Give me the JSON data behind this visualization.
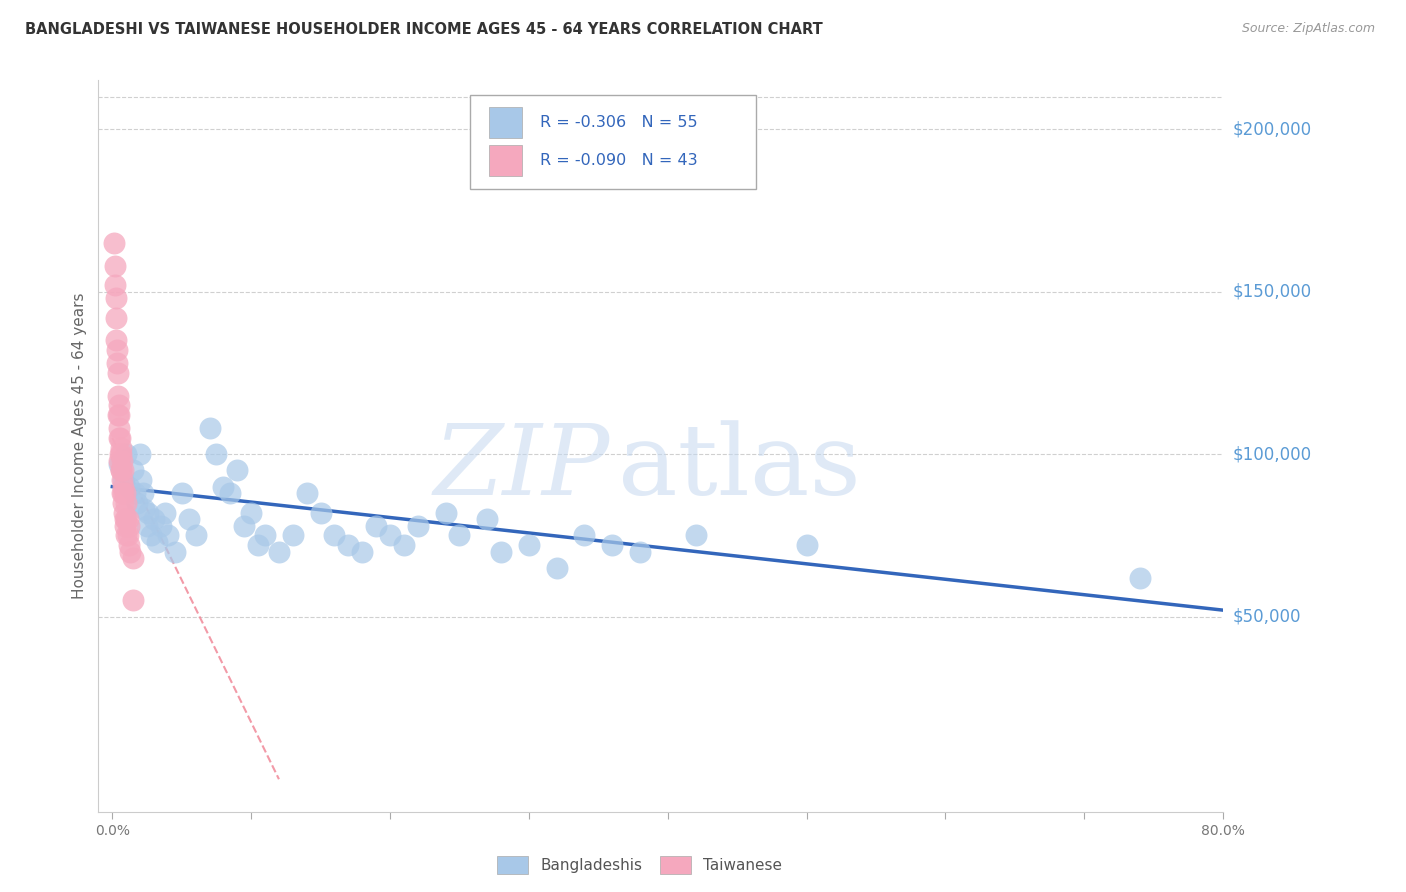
{
  "title": "BANGLADESHI VS TAIWANESE HOUSEHOLDER INCOME AGES 45 - 64 YEARS CORRELATION CHART",
  "source": "Source: ZipAtlas.com",
  "ylabel": "Householder Income Ages 45 - 64 years",
  "ytick_vals": [
    50000,
    100000,
    150000,
    200000
  ],
  "ytick_labels": [
    "$50,000",
    "$100,000",
    "$150,000",
    "$200,000"
  ],
  "ylim": [
    -10000,
    215000
  ],
  "xlim": [
    -1,
    80
  ],
  "xlabel_vals": [
    0,
    10,
    20,
    30,
    40,
    50,
    60,
    70,
    80
  ],
  "xlabel_ticks": [
    "0.0%",
    "",
    "",
    "",
    "",
    "",
    "",
    "",
    "80.0%"
  ],
  "bg_color": "#ffffff",
  "grid_color": "#d0d0d0",
  "blue_scatter_color": "#a8c8e8",
  "pink_scatter_color": "#f5a8be",
  "blue_line_color": "#3366bb",
  "pink_line_color": "#f08898",
  "right_label_color": "#5b9bd5",
  "title_color": "#333333",
  "source_color": "#999999",
  "watermark_zip_color": "#c5d8f0",
  "watermark_atlas_color": "#c5d8f0",
  "legend_text_color": "#3366bb",
  "legend_R_blue": "R = -0.306",
  "legend_N_blue": "N = 55",
  "legend_R_pink": "R = -0.090",
  "legend_N_pink": "N = 43",
  "bangladeshi_x": [
    0.5,
    0.8,
    1.0,
    1.2,
    1.5,
    1.6,
    1.8,
    2.0,
    2.1,
    2.2,
    2.3,
    2.5,
    2.6,
    2.8,
    3.0,
    3.2,
    3.5,
    3.8,
    4.0,
    4.5,
    5.0,
    5.5,
    6.0,
    7.0,
    7.5,
    8.0,
    8.5,
    9.0,
    9.5,
    10.0,
    10.5,
    11.0,
    12.0,
    13.0,
    14.0,
    15.0,
    16.0,
    17.0,
    18.0,
    19.0,
    20.0,
    21.0,
    22.0,
    24.0,
    25.0,
    27.0,
    28.0,
    30.0,
    32.0,
    34.0,
    36.0,
    38.0,
    42.0,
    50.0,
    74.0
  ],
  "bangladeshi_y": [
    97000,
    92000,
    100000,
    90000,
    95000,
    88000,
    85000,
    100000,
    92000,
    88000,
    83000,
    78000,
    82000,
    75000,
    80000,
    73000,
    78000,
    82000,
    75000,
    70000,
    88000,
    80000,
    75000,
    108000,
    100000,
    90000,
    88000,
    95000,
    78000,
    82000,
    72000,
    75000,
    70000,
    75000,
    88000,
    82000,
    75000,
    72000,
    70000,
    78000,
    75000,
    72000,
    78000,
    82000,
    75000,
    80000,
    70000,
    72000,
    65000,
    75000,
    72000,
    70000,
    75000,
    72000,
    62000
  ],
  "taiwanese_x": [
    0.15,
    0.2,
    0.2,
    0.25,
    0.3,
    0.3,
    0.35,
    0.35,
    0.4,
    0.4,
    0.4,
    0.45,
    0.45,
    0.5,
    0.5,
    0.5,
    0.55,
    0.55,
    0.6,
    0.6,
    0.65,
    0.65,
    0.7,
    0.7,
    0.7,
    0.75,
    0.75,
    0.8,
    0.8,
    0.85,
    0.9,
    0.9,
    0.95,
    1.0,
    1.0,
    1.0,
    1.1,
    1.1,
    1.2,
    1.2,
    1.3,
    1.5,
    1.5
  ],
  "taiwanese_y": [
    165000,
    158000,
    152000,
    148000,
    142000,
    135000,
    132000,
    128000,
    125000,
    118000,
    112000,
    115000,
    108000,
    112000,
    105000,
    98000,
    105000,
    100000,
    100000,
    95000,
    102000,
    95000,
    98000,
    92000,
    88000,
    95000,
    88000,
    90000,
    85000,
    82000,
    88000,
    80000,
    78000,
    85000,
    80000,
    75000,
    80000,
    75000,
    78000,
    72000,
    70000,
    68000,
    55000
  ],
  "blue_reg_x0": 0,
  "blue_reg_y0": 90000,
  "blue_reg_x1": 80,
  "blue_reg_y1": 52000,
  "pink_reg_x0": 0,
  "pink_reg_y0": 105000,
  "pink_reg_x1": 12,
  "pink_reg_y1": 0
}
